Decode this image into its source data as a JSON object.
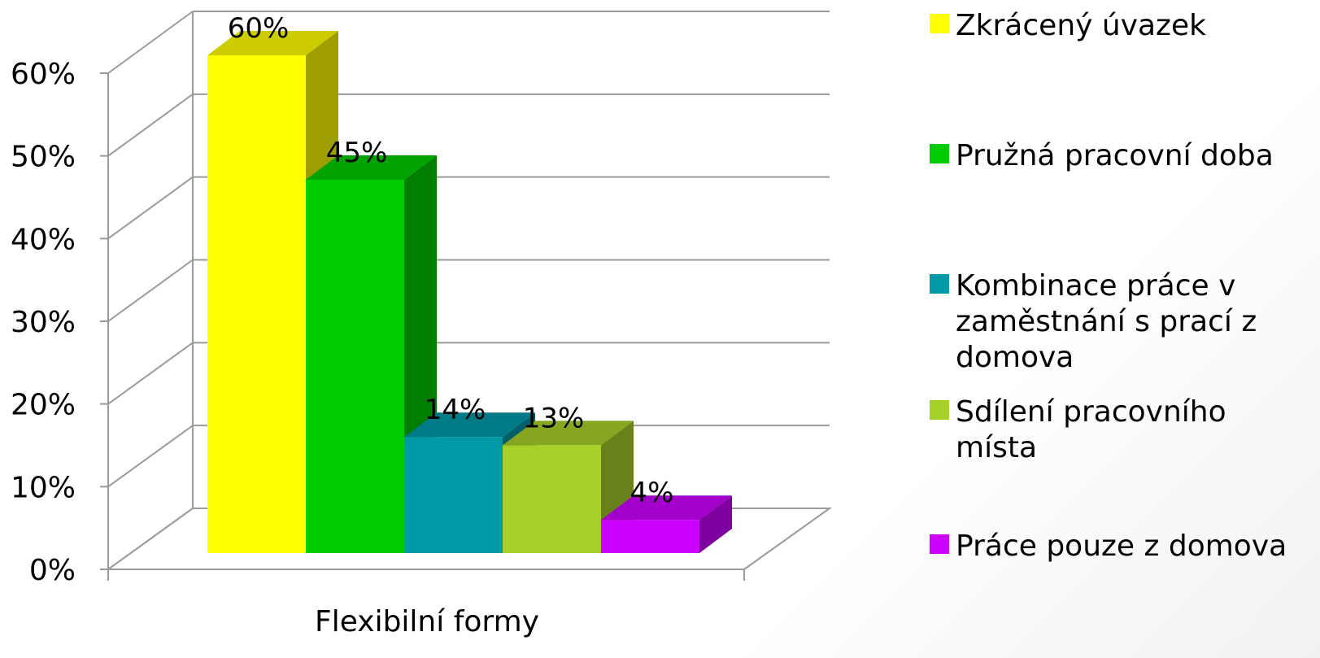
{
  "chart_data": {
    "type": "bar",
    "categories": [
      "Flexibilní formy"
    ],
    "xlabel": "Flexibilní formy",
    "ylim": [
      0,
      60
    ],
    "yticks": [
      "0%",
      "10%",
      "20%",
      "30%",
      "40%",
      "50%",
      "60%"
    ],
    "grid": true,
    "legend_position": "right",
    "series": [
      {
        "name": "Zkrácený úvazek",
        "values": [
          60
        ],
        "label": "60%",
        "color": "#ffff00"
      },
      {
        "name": "Pružná pracovní doba",
        "values": [
          45
        ],
        "label": "45%",
        "color": "#00cc00"
      },
      {
        "name": "Kombinace práce v zaměstnání s prací z domova",
        "values": [
          14
        ],
        "label": "14%",
        "color": "#0099a8"
      },
      {
        "name": "Sdílení pracovního místa",
        "values": [
          13
        ],
        "label": "13%",
        "color": "#a8d02a"
      },
      {
        "name": "Práce pouze z domova",
        "values": [
          4
        ],
        "label": "4%",
        "color": "#cc00ff"
      }
    ]
  }
}
